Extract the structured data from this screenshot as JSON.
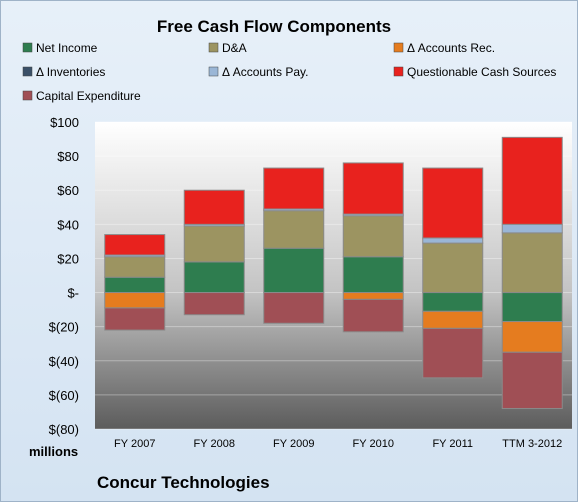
{
  "chart_data": {
    "type": "bar",
    "stacked": true,
    "title": "Free Cash Flow Components",
    "company": "Concur Technologies",
    "unit_label": "millions",
    "categories": [
      "FY 2007",
      "FY 2008",
      "FY 2009",
      "FY 2010",
      "FY 2011",
      "TTM 3-2012"
    ],
    "ylim": [
      -80,
      100
    ],
    "yticks": [
      -80,
      -60,
      -40,
      -20,
      0,
      20,
      40,
      60,
      80,
      100
    ],
    "ytick_labels": [
      "$(80)",
      "$(60)",
      "$(40)",
      "$(20)",
      "$-",
      "$20",
      "$40",
      "$60",
      "$80",
      "$100"
    ],
    "legend_position": "top",
    "series": [
      {
        "name": "Net Income",
        "color": "#2e7d4f",
        "values": [
          9,
          18,
          26,
          21,
          -11,
          -17
        ]
      },
      {
        "name": "D&A",
        "color": "#9c9461",
        "values": [
          12,
          21,
          22,
          24,
          29,
          35
        ]
      },
      {
        "name": "Δ Accounts Rec.",
        "color": "#e57c1f",
        "values": [
          -9,
          0,
          0,
          -4,
          -10,
          -18
        ]
      },
      {
        "name": "Δ Inventories",
        "color": "#3a5068",
        "values": [
          0,
          0,
          0,
          0,
          0,
          0
        ]
      },
      {
        "name": "Δ Accounts Pay.",
        "color": "#9ab6d6",
        "values": [
          1,
          1,
          1,
          1,
          3,
          5
        ]
      },
      {
        "name": "Questionable Cash Sources",
        "color": "#e8221e",
        "values": [
          12,
          20,
          24,
          30,
          41,
          51
        ]
      },
      {
        "name": "Capital Expenditure",
        "color": "#a04f55",
        "values": [
          -13,
          -13,
          -18,
          -19,
          -29,
          -33
        ]
      }
    ]
  }
}
